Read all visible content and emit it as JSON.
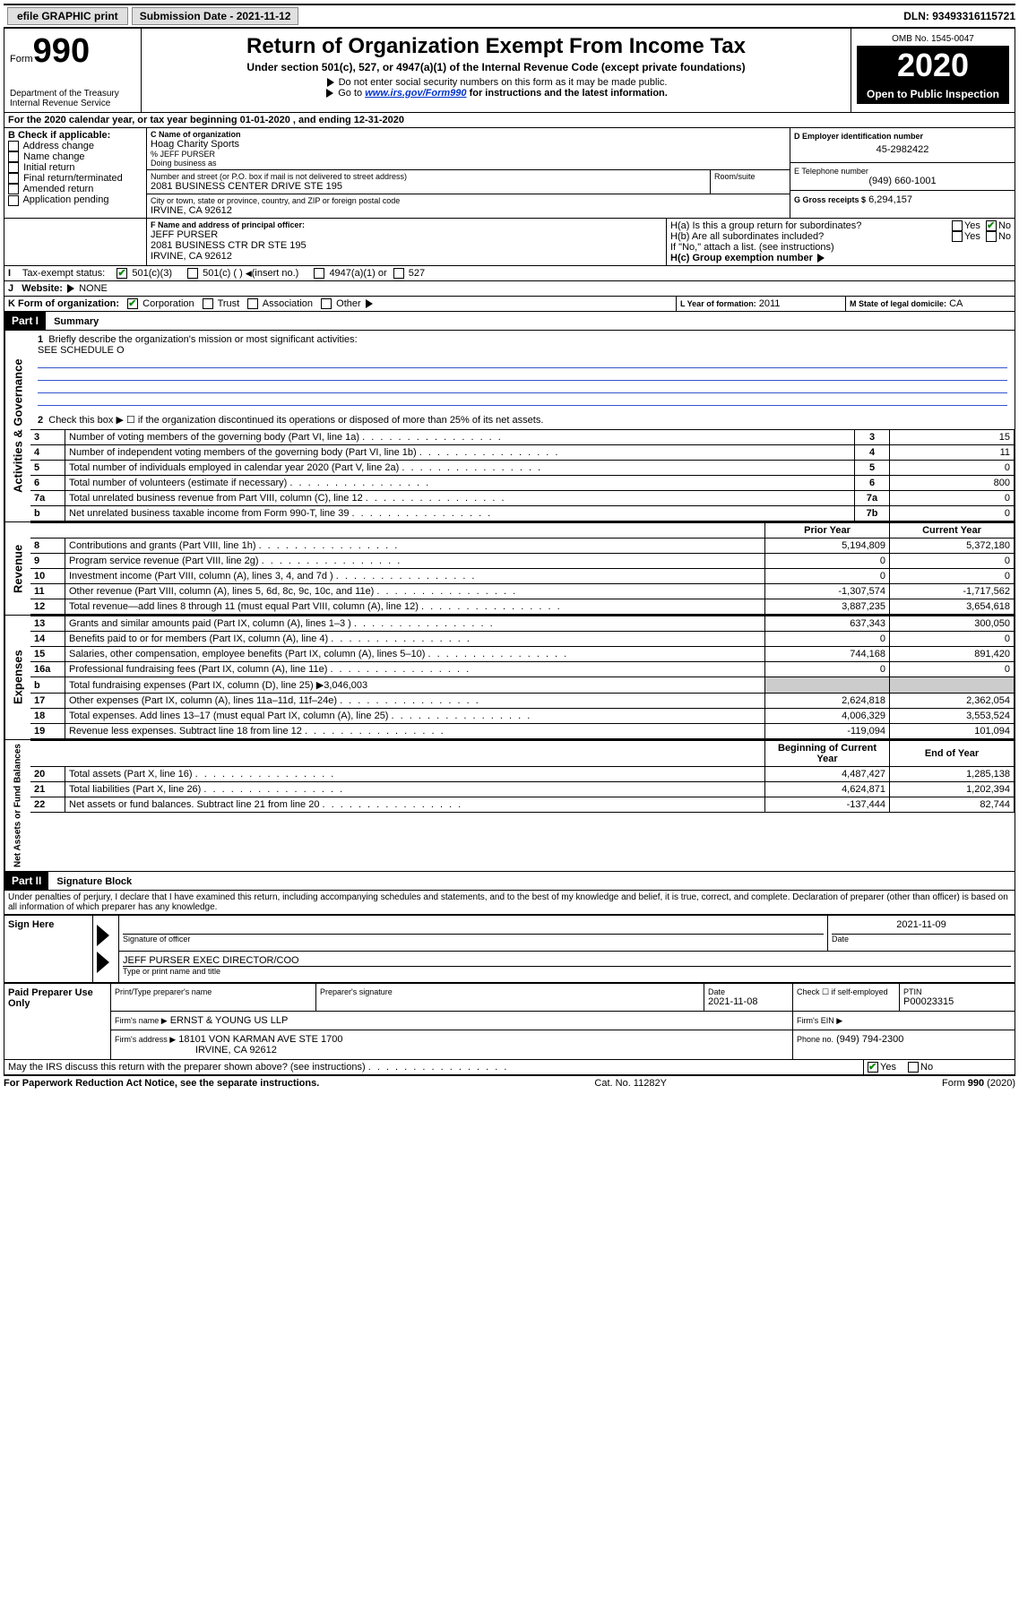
{
  "topbar": {
    "efile": "efile GRAPHIC print",
    "submission_label": "Submission Date - 2021-11-12",
    "dln": "DLN: 93493316115721"
  },
  "header": {
    "form_prefix": "Form",
    "form_number": "990",
    "dept": "Department of the Treasury",
    "irs": "Internal Revenue Service",
    "title": "Return of Organization Exempt From Income Tax",
    "subtitle": "Under section 501(c), 527, or 4947(a)(1) of the Internal Revenue Code (except private foundations)",
    "note1": "Do not enter social security numbers on this form as it may be made public.",
    "note2_prefix": "Go to ",
    "note2_link": "www.irs.gov/Form990",
    "note2_suffix": " for instructions and the latest information.",
    "omb": "OMB No. 1545-0047",
    "year": "2020",
    "inspection": "Open to Public Inspection"
  },
  "lineA": "For the 2020 calendar year, or tax year beginning 01-01-2020    , and ending 12-31-2020",
  "boxB": {
    "label": "B Check if applicable:",
    "items": [
      "Address change",
      "Name change",
      "Initial return",
      "Final return/terminated",
      "Amended return",
      "Application pending"
    ]
  },
  "boxC": {
    "label": "C Name of organization",
    "org": "Hoag Charity Sports",
    "care_of_label": "% JEFF PURSER",
    "dba_label": "Doing business as",
    "street_label": "Number and street (or P.O. box if mail is not delivered to street address)",
    "room_label": "Room/suite",
    "street": "2081 BUSINESS CENTER DRIVE STE 195",
    "city_label": "City or town, state or province, country, and ZIP or foreign postal code",
    "city": "IRVINE, CA  92612"
  },
  "boxD": {
    "label": "D Employer identification number",
    "value": "45-2982422"
  },
  "boxE": {
    "label": "E Telephone number",
    "value": "(949) 660-1001"
  },
  "boxG": {
    "label": "G Gross receipts $",
    "value": "6,294,157"
  },
  "boxF": {
    "label": "F  Name and address of principal officer:",
    "name": "JEFF PURSER",
    "addr1": "2081 BUSINESS CTR DR STE 195",
    "addr2": "IRVINE, CA  92612"
  },
  "boxH": {
    "a": "H(a)  Is this a group return for subordinates?",
    "b": "H(b)  Are all subordinates included?",
    "b_note": "If \"No,\" attach a list. (see instructions)",
    "c": "H(c)  Group exemption number",
    "yes": "Yes",
    "no": "No"
  },
  "taxExempt": {
    "label": "Tax-exempt status:",
    "c3": "501(c)(3)",
    "c_blank": "501(c) (   )",
    "insert": "(insert no.)",
    "a1": "4947(a)(1) or",
    "s527": "527"
  },
  "websiteJ": {
    "label": "Website:",
    "value": "NONE"
  },
  "lineK": {
    "label": "K Form of organization:",
    "corp": "Corporation",
    "trust": "Trust",
    "assoc": "Association",
    "other": "Other"
  },
  "lineL": {
    "label": "L Year of formation:",
    "value": "2011"
  },
  "lineM": {
    "label": "M State of legal domicile:",
    "value": "CA"
  },
  "part1": {
    "header": "Part I",
    "title": "Summary"
  },
  "summary": {
    "q1": "Briefly describe the organization's mission or most significant activities:",
    "q1_ans": "SEE SCHEDULE O",
    "q2": "Check this box ▶ ☐  if the organization discontinued its operations or disposed of more than 25% of its net assets.",
    "rows_gov": [
      {
        "n": "3",
        "t": "Number of voting members of the governing body (Part VI, line 1a)",
        "box": "3",
        "v": "15"
      },
      {
        "n": "4",
        "t": "Number of independent voting members of the governing body (Part VI, line 1b)",
        "box": "4",
        "v": "11"
      },
      {
        "n": "5",
        "t": "Total number of individuals employed in calendar year 2020 (Part V, line 2a)",
        "box": "5",
        "v": "0"
      },
      {
        "n": "6",
        "t": "Total number of volunteers (estimate if necessary)",
        "box": "6",
        "v": "800"
      },
      {
        "n": "7a",
        "t": "Total unrelated business revenue from Part VIII, column (C), line 12",
        "box": "7a",
        "v": "0"
      },
      {
        "n": "b",
        "t": "Net unrelated business taxable income from Form 990-T, line 39",
        "box": "7b",
        "v": "0"
      }
    ],
    "prior": "Prior Year",
    "current": "Current Year",
    "rows_rev": [
      {
        "n": "8",
        "t": "Contributions and grants (Part VIII, line 1h)",
        "p": "5,194,809",
        "c": "5,372,180"
      },
      {
        "n": "9",
        "t": "Program service revenue (Part VIII, line 2g)",
        "p": "0",
        "c": "0"
      },
      {
        "n": "10",
        "t": "Investment income (Part VIII, column (A), lines 3, 4, and 7d )",
        "p": "0",
        "c": "0"
      },
      {
        "n": "11",
        "t": "Other revenue (Part VIII, column (A), lines 5, 6d, 8c, 9c, 10c, and 11e)",
        "p": "-1,307,574",
        "c": "-1,717,562"
      },
      {
        "n": "12",
        "t": "Total revenue—add lines 8 through 11 (must equal Part VIII, column (A), line 12)",
        "p": "3,887,235",
        "c": "3,654,618"
      }
    ],
    "rows_exp": [
      {
        "n": "13",
        "t": "Grants and similar amounts paid (Part IX, column (A), lines 1–3 )",
        "p": "637,343",
        "c": "300,050"
      },
      {
        "n": "14",
        "t": "Benefits paid to or for members (Part IX, column (A), line 4)",
        "p": "0",
        "c": "0"
      },
      {
        "n": "15",
        "t": "Salaries, other compensation, employee benefits (Part IX, column (A), lines 5–10)",
        "p": "744,168",
        "c": "891,420"
      },
      {
        "n": "16a",
        "t": "Professional fundraising fees (Part IX, column (A), line 11e)",
        "p": "0",
        "c": "0"
      },
      {
        "n": "b",
        "t": "Total fundraising expenses (Part IX, column (D), line 25) ▶3,046,003",
        "p": "",
        "c": "",
        "shaded": true
      },
      {
        "n": "17",
        "t": "Other expenses (Part IX, column (A), lines 11a–11d, 11f–24e)",
        "p": "2,624,818",
        "c": "2,362,054"
      },
      {
        "n": "18",
        "t": "Total expenses. Add lines 13–17 (must equal Part IX, column (A), line 25)",
        "p": "4,006,329",
        "c": "3,553,524"
      },
      {
        "n": "19",
        "t": "Revenue less expenses. Subtract line 18 from line 12",
        "p": "-119,094",
        "c": "101,094"
      }
    ],
    "bocy": "Beginning of Current Year",
    "eoy": "End of Year",
    "rows_net": [
      {
        "n": "20",
        "t": "Total assets (Part X, line 16)",
        "p": "4,487,427",
        "c": "1,285,138"
      },
      {
        "n": "21",
        "t": "Total liabilities (Part X, line 26)",
        "p": "4,624,871",
        "c": "1,202,394"
      },
      {
        "n": "22",
        "t": "Net assets or fund balances. Subtract line 21 from line 20",
        "p": "-137,444",
        "c": "82,744"
      }
    ],
    "vlabels": {
      "gov": "Activities & Governance",
      "rev": "Revenue",
      "exp": "Expenses",
      "net": "Net Assets or Fund Balances"
    }
  },
  "part2": {
    "header": "Part II",
    "title": "Signature Block"
  },
  "perjury": "Under penalties of perjury, I declare that I have examined this return, including accompanying schedules and statements, and to the best of my knowledge and belief, it is true, correct, and complete. Declaration of preparer (other than officer) is based on all information of which preparer has any knowledge.",
  "sign": {
    "here": "Sign Here",
    "sig_officer": "Signature of officer",
    "date_label": "Date",
    "date": "2021-11-09",
    "name": "JEFF PURSER  EXEC DIRECTOR/COO",
    "name_label": "Type or print name and title"
  },
  "preparer": {
    "label": "Paid Preparer Use Only",
    "print_name": "Print/Type preparer's name",
    "sig": "Preparer's signature",
    "date_label": "Date",
    "date": "2021-11-08",
    "check_self": "Check ☐ if self-employed",
    "ptin_label": "PTIN",
    "ptin": "P00023315",
    "firm_name_label": "Firm's name   ▶",
    "firm_name": "ERNST & YOUNG US LLP",
    "firm_ein_label": "Firm's EIN ▶",
    "firm_addr_label": "Firm's address ▶",
    "firm_addr1": "18101 VON KARMAN AVE STE 1700",
    "firm_addr2": "IRVINE, CA  92612",
    "phone_label": "Phone no.",
    "phone": "(949) 794-2300"
  },
  "discuss": {
    "q": "May the IRS discuss this return with the preparer shown above? (see instructions)",
    "yes": "Yes",
    "no": "No"
  },
  "footer": {
    "paperwork": "For Paperwork Reduction Act Notice, see the separate instructions.",
    "cat": "Cat. No. 11282Y",
    "form": "Form 990 (2020)"
  }
}
